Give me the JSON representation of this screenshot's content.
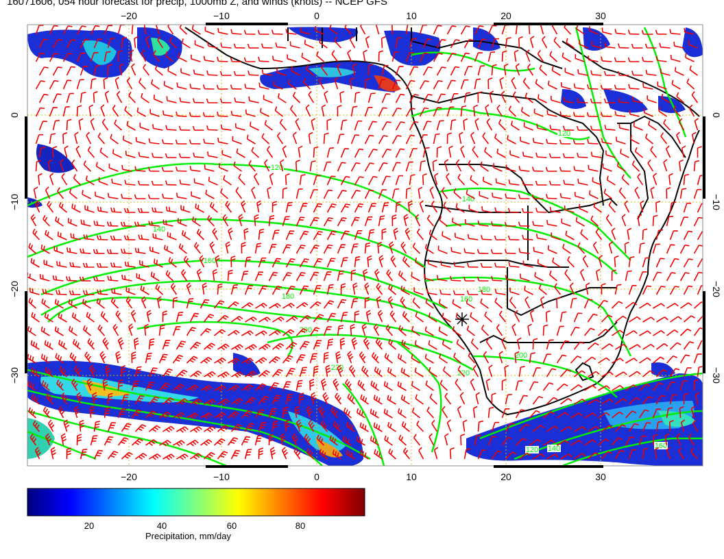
{
  "title": "16071606, 054 hour forecast for precip, 1000mb Z, and winds (knots) -- NCEP GFS",
  "map": {
    "lon_ticks_top": [
      "−20",
      "−10",
      "0",
      "10",
      "20",
      "30"
    ],
    "lon_ticks_bottom": [
      "−20",
      "−10",
      "0",
      "10",
      "20",
      "30"
    ],
    "lat_ticks_left": [
      "0",
      "−10",
      "−20",
      "−30"
    ],
    "lat_ticks_right": [
      "0",
      "−10",
      "−20",
      "−30"
    ],
    "contour_labels": [
      "120",
      "140",
      "160",
      "180",
      "200",
      "220",
      "120",
      "140",
      "160",
      "180",
      "200",
      "220",
      "160",
      "140",
      "120"
    ],
    "colors": {
      "contour": "#00ee00",
      "wind_barb": "#ee0000",
      "grid": "#d4c200",
      "coast": "#000000"
    }
  },
  "colorbar": {
    "tick_labels": [
      "20",
      "40",
      "60",
      "80"
    ],
    "label": "Precipitation, mm/day",
    "colormap": [
      "#00007f",
      "#0000ff",
      "#007fff",
      "#00ffff",
      "#7fff7f",
      "#ffff00",
      "#ff7f00",
      "#ff0000",
      "#7f0000"
    ]
  }
}
